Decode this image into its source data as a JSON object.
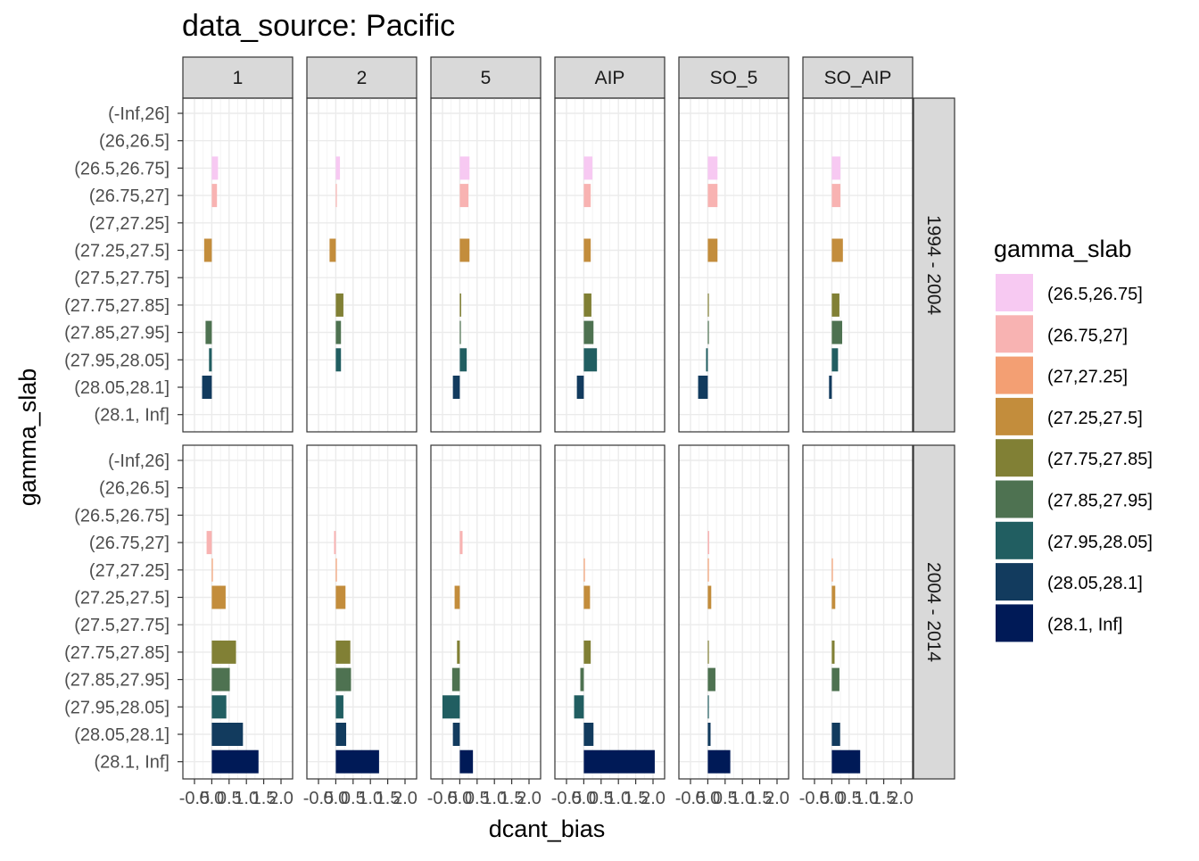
{
  "title": "data_source: Pacific",
  "legend": {
    "title": "gamma_slab",
    "items": [
      {
        "label": "(26.5,26.75]",
        "color": "#F7C9F2"
      },
      {
        "label": "(26.75,27]",
        "color": "#F8B3B2"
      },
      {
        "label": "(27,27.25]",
        "color": "#F39F73"
      },
      {
        "label": "(27.25,27.5]",
        "color": "#C38D3C"
      },
      {
        "label": "(27.75,27.85]",
        "color": "#818035"
      },
      {
        "label": "(27.85,27.95]",
        "color": "#4E7251"
      },
      {
        "label": "(27.95,28.05]",
        "color": "#215E61"
      },
      {
        "label": "(28.05,28.1]",
        "color": "#123B5E"
      },
      {
        "label": "(28.1, Inf]",
        "color": "#001A57"
      }
    ]
  },
  "chart_data": {
    "type": "bar",
    "orientation": "horizontal",
    "xlabel": "dcant_bias",
    "ylabel": "gamma_slab",
    "xlim": [
      -0.5,
      2.0
    ],
    "x_ticks": [
      "-0.5",
      "0.0",
      "0.5",
      "1.0",
      "1.5",
      "2.0"
    ],
    "categories": [
      "(-Inf,26]",
      "(26,26.5]",
      "(26.5,26.75]",
      "(26.75,27]",
      "(27,27.25]",
      "(27.25,27.5]",
      "(27.5,27.75]",
      "(27.75,27.85]",
      "(27.85,27.95]",
      "(27.95,28.05]",
      "(28.05,28.1]",
      "(28.1, Inf]"
    ],
    "col_facets": [
      "1",
      "2",
      "5",
      "AIP",
      "SO_5",
      "SO_AIP"
    ],
    "row_facets": [
      "1994 - 2004",
      "2004 - 2014"
    ],
    "panels": [
      [
        {
          "values": [
            null,
            null,
            0.18,
            0.15,
            null,
            -0.22,
            null,
            null,
            -0.18,
            -0.08,
            -0.28,
            null
          ]
        },
        {
          "values": [
            null,
            null,
            0.12,
            0.02,
            null,
            -0.18,
            null,
            0.22,
            0.15,
            0.15,
            null,
            null
          ]
        },
        {
          "values": [
            null,
            null,
            0.28,
            0.25,
            null,
            0.28,
            null,
            0.04,
            0.02,
            0.2,
            -0.2,
            null
          ]
        },
        {
          "values": [
            null,
            null,
            0.25,
            0.2,
            null,
            0.2,
            null,
            0.22,
            0.28,
            0.38,
            -0.2,
            null
          ]
        },
        {
          "values": [
            null,
            null,
            0.28,
            0.28,
            null,
            0.28,
            null,
            0.03,
            0.02,
            -0.05,
            -0.28,
            null
          ]
        },
        {
          "values": [
            null,
            null,
            0.25,
            0.25,
            null,
            0.32,
            null,
            0.22,
            0.3,
            0.18,
            -0.08,
            null
          ]
        }
      ],
      [
        {
          "values": [
            null,
            null,
            null,
            -0.15,
            0.02,
            0.4,
            null,
            0.7,
            0.52,
            0.42,
            0.9,
            1.35
          ]
        },
        {
          "values": [
            null,
            null,
            null,
            -0.05,
            0.03,
            0.28,
            null,
            0.42,
            0.44,
            0.22,
            0.3,
            1.25
          ]
        },
        {
          "values": [
            null,
            null,
            null,
            0.08,
            null,
            -0.15,
            null,
            -0.08,
            -0.22,
            -0.5,
            -0.2,
            0.38
          ]
        },
        {
          "values": [
            null,
            null,
            null,
            null,
            0.03,
            0.18,
            null,
            0.2,
            -0.1,
            -0.28,
            0.28,
            2.05
          ]
        },
        {
          "values": [
            null,
            null,
            null,
            0.04,
            0.02,
            0.1,
            null,
            0.03,
            0.22,
            0.02,
            0.08,
            0.65
          ]
        },
        {
          "values": [
            null,
            null,
            null,
            null,
            0.03,
            0.1,
            null,
            0.08,
            0.22,
            null,
            0.24,
            0.82
          ]
        }
      ]
    ]
  }
}
